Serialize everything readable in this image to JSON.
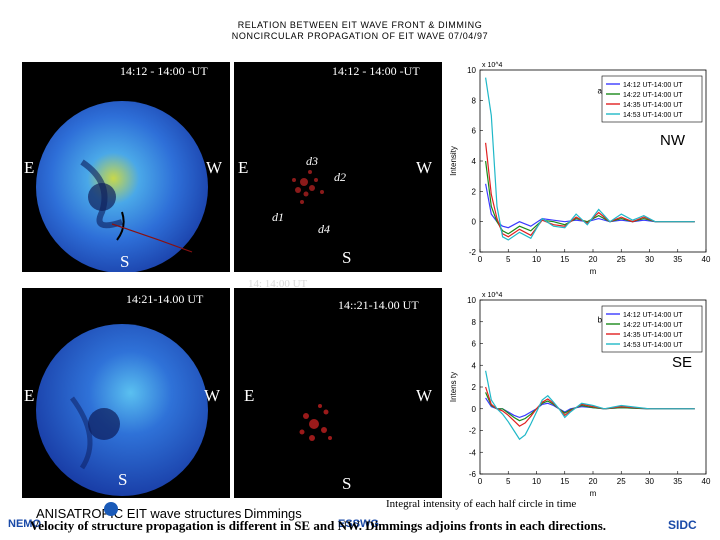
{
  "header": {
    "line1": "RELATION BETWEEN EIT WAVE FRONT & DIMMING",
    "line2": "NONCIRCULAR PROPAGATION OF EIT WAVE 07/04/97"
  },
  "panels": {
    "top_left": {
      "time": "14:12 - 14:00 -UT",
      "left": "E",
      "right": "W",
      "bottom": "S"
    },
    "top_right": {
      "time": "14:12 - 14:00 -UT",
      "left": "E",
      "right": "W",
      "bottom": "S",
      "d1": "d1",
      "d2": "d2",
      "d3": "d3",
      "d4": "d4",
      "ghost": "14:    14:00 UT"
    },
    "bottom_left": {
      "time": "14:21-14.00 UT",
      "left": "E",
      "right": "W",
      "bottom": "S"
    },
    "bottom_right": {
      "time": "14::21-14.00 UT",
      "left": "E",
      "right": "W",
      "bottom": "S"
    }
  },
  "labels": {
    "nw": "NW",
    "se": "SE",
    "integral": "Integral intensity of each half circle in time",
    "structures": "ANISATROPIC EIT wave structures",
    "dimmings": "Dimmings",
    "bottom_text": "Velocity of structure propagation is different in SE and NW. Dimmings adjoins fronts in each directions.",
    "left_logo": "NEMO",
    "center_logo": "ESSWG",
    "right_logo": "SIDC"
  },
  "colors": {
    "l1": "#3a3aff",
    "l2": "#1a8a1a",
    "l3": "#e02020",
    "l4": "#20b8c8"
  },
  "chart_data": [
    {
      "type": "line",
      "panel_label": "a)",
      "exponent": "x 10^4",
      "ylabel": "Intensity",
      "xlabel": "m",
      "xlim": [
        0,
        40
      ],
      "ylim": [
        -2,
        10
      ],
      "xticks": [
        0,
        5,
        10,
        15,
        20,
        25,
        30,
        35,
        40
      ],
      "yticks": [
        -2,
        0,
        2,
        4,
        6,
        8,
        10
      ],
      "series": [
        {
          "name": "14:12 UT-14:00 UT",
          "x": [
            1,
            2,
            3,
            4,
            5,
            7,
            9,
            11,
            13,
            15,
            17,
            19,
            21,
            23,
            25,
            27,
            29,
            31,
            33,
            35,
            37,
            38
          ],
          "values": [
            2.5,
            0.5,
            0.0,
            -0.3,
            -0.4,
            0.0,
            -0.3,
            0.2,
            0.1,
            0.0,
            0.1,
            0.0,
            0.2,
            0.0,
            0.1,
            0.0,
            0.1,
            0.0,
            0.0,
            0.0,
            0.0,
            0.0
          ]
        },
        {
          "name": "14:22 UT-14:00 UT",
          "x": [
            1,
            2,
            3,
            4,
            5,
            7,
            9,
            11,
            13,
            15,
            17,
            19,
            21,
            23,
            25,
            27,
            29,
            31,
            33,
            35,
            37,
            38
          ],
          "values": [
            4.0,
            1.0,
            0.0,
            -0.6,
            -0.8,
            -0.3,
            -0.6,
            0.1,
            0.0,
            -0.2,
            0.2,
            0.0,
            0.4,
            0.0,
            0.2,
            0.0,
            0.2,
            0.0,
            0.0,
            0.0,
            0.0,
            0.0
          ]
        },
        {
          "name": "14:35 UT-14:00 UT",
          "x": [
            1,
            2,
            3,
            4,
            5,
            7,
            9,
            11,
            13,
            15,
            17,
            19,
            21,
            23,
            25,
            27,
            29,
            31,
            33,
            35,
            37,
            38
          ],
          "values": [
            5.2,
            1.8,
            0.2,
            -0.8,
            -1.0,
            -0.5,
            -0.9,
            0.1,
            -0.2,
            -0.3,
            0.3,
            -0.1,
            0.6,
            0.0,
            0.3,
            0.0,
            0.3,
            0.0,
            0.0,
            0.0,
            0.0,
            0.0
          ]
        },
        {
          "name": "14:53 UT-14:00 UT",
          "x": [
            1,
            2,
            3,
            4,
            5,
            7,
            9,
            11,
            13,
            15,
            17,
            19,
            21,
            23,
            25,
            27,
            29,
            31,
            33,
            35,
            37,
            38
          ],
          "values": [
            9.5,
            7.0,
            1.0,
            -1.0,
            -1.2,
            -0.7,
            -1.1,
            0.2,
            -0.3,
            -0.4,
            0.5,
            -0.2,
            0.8,
            0.0,
            0.5,
            0.1,
            0.4,
            0.0,
            0.0,
            0.0,
            0.0,
            0.0
          ]
        }
      ]
    },
    {
      "type": "line",
      "panel_label": "b)",
      "exponent": "x 10^4",
      "ylabel": "Intens ty",
      "xlabel": "m",
      "xlim": [
        0,
        40
      ],
      "ylim": [
        -6,
        10
      ],
      "xticks": [
        0,
        5,
        10,
        15,
        20,
        25,
        30,
        35,
        40
      ],
      "yticks": [
        -6,
        -4,
        -2,
        0,
        2,
        4,
        6,
        8,
        10
      ],
      "series": [
        {
          "name": "14:12 UT-14:00 UT",
          "x": [
            1,
            2,
            3,
            4,
            5,
            6,
            7,
            8,
            9,
            10,
            11,
            12,
            13,
            14,
            15,
            16,
            18,
            20,
            22,
            25,
            30,
            35,
            38
          ],
          "values": [
            1.0,
            0.2,
            0.0,
            0.0,
            -0.3,
            -0.6,
            -0.8,
            -0.6,
            -0.3,
            0.0,
            0.4,
            0.5,
            0.3,
            0.0,
            -0.3,
            0.0,
            0.2,
            0.1,
            0.0,
            0.1,
            0.0,
            0.0,
            0.0
          ]
        },
        {
          "name": "14:22 UT-14:00 UT",
          "x": [
            1,
            2,
            3,
            4,
            5,
            6,
            7,
            8,
            9,
            10,
            11,
            12,
            13,
            14,
            15,
            16,
            18,
            20,
            22,
            25,
            30,
            35,
            38
          ],
          "values": [
            1.5,
            0.3,
            0.0,
            0.0,
            -0.4,
            -0.8,
            -1.1,
            -0.9,
            -0.5,
            0.0,
            0.5,
            0.7,
            0.4,
            0.0,
            -0.4,
            -0.1,
            0.3,
            0.1,
            0.0,
            0.1,
            0.0,
            0.0,
            0.0
          ]
        },
        {
          "name": "14:35 UT-14:00 UT",
          "x": [
            1,
            2,
            3,
            4,
            5,
            6,
            7,
            8,
            9,
            10,
            11,
            12,
            13,
            14,
            15,
            16,
            18,
            20,
            22,
            25,
            30,
            35,
            38
          ],
          "values": [
            2.0,
            0.4,
            0.0,
            -0.2,
            -0.6,
            -1.1,
            -1.6,
            -1.3,
            -0.7,
            0.0,
            0.6,
            0.9,
            0.5,
            0.0,
            -0.6,
            -0.2,
            0.4,
            0.2,
            0.0,
            0.2,
            0.0,
            0.0,
            0.0
          ]
        },
        {
          "name": "14:53 UT-14:00 UT",
          "x": [
            1,
            2,
            3,
            4,
            5,
            6,
            7,
            8,
            9,
            10,
            11,
            12,
            13,
            14,
            15,
            16,
            18,
            20,
            22,
            25,
            30,
            35,
            38
          ],
          "values": [
            3.5,
            0.8,
            0.0,
            -0.5,
            -1.2,
            -2.0,
            -2.8,
            -2.4,
            -1.4,
            -0.3,
            0.8,
            1.2,
            0.6,
            0.0,
            -0.8,
            -0.3,
            0.5,
            0.3,
            0.0,
            0.3,
            0.0,
            0.0,
            0.0
          ]
        }
      ]
    }
  ]
}
